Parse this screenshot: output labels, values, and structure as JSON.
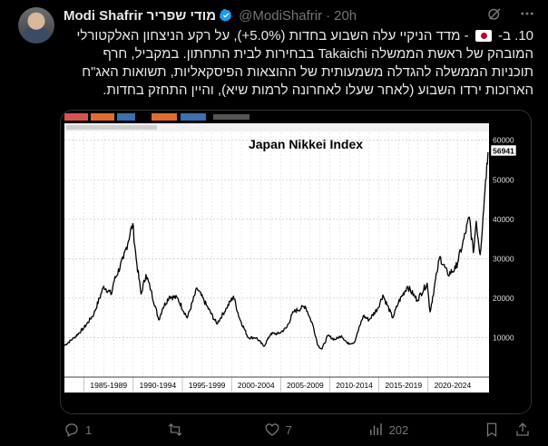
{
  "tweet": {
    "author_name": "Modi Shafrir מודי שפריר",
    "handle": "@ModiShafrir",
    "time": "20h",
    "text_lines": [
      "10. ב- 🇯🇵 - מדד הניקיי עלה השבוע בחדות (5.0%+), על רקע הניצחון האלקטורלי",
      "המובהק של ראשת הממשלה Takaichi בבחירות לבית התחתון. במקביל, חרף",
      "תוכניות הממשלה להגדלה משמעותית של ההוצאות הפיסקאליות, תשואות האג\"ח",
      "הארוכות ירדו השבוע (לאחר שעלו לאחרונה לרמות שיא), והיין התחזק בחדות."
    ],
    "text_pre_flag": "10. ב-",
    "text_post_flag": "- מדד הניקיי עלה השבוע בחדות (5.0%+), על רקע הניצחון האלקטורלי המובהק של ראשת הממשלה Takaichi בבחירות לבית התחתון. במקביל, חרף תוכניות הממשלה להגדלה משמעותית של ההוצאות הפיסקאליות, תשואות האג\"ח הארוכות ירדו השבוע (לאחר שעלו לאחרונה לרמות שיא), והיין התחזק בחדות."
  },
  "icons": {
    "verified": "verified-badge-icon",
    "grok": "grok-icon",
    "more": "more-icon",
    "reply": "reply-icon",
    "retweet": "retweet-icon",
    "like": "like-icon",
    "views": "views-icon",
    "bookmark": "bookmark-icon",
    "share": "share-icon"
  },
  "colors": {
    "accent": "#1d9bf0",
    "muted": "#71767b"
  },
  "actions": {
    "reply_count": "1",
    "retweet_count": "",
    "like_count": "7",
    "views_count": "202"
  },
  "chart_data": {
    "type": "line",
    "title": "Japan Nikkei Index",
    "x_tick_labels": [
      "1985-1989",
      "1990-1994",
      "1995-1999",
      "2000-2004",
      "2005-2009",
      "2010-2014",
      "2015-2019",
      "2020-2024"
    ],
    "y_tick_labels": [
      "60000",
      "50000",
      "40000",
      "30000",
      "20000",
      "10000"
    ],
    "ylim": [
      0,
      62000
    ],
    "xlim": [
      1983,
      2026.2
    ],
    "last_value_label": "56941",
    "grid": true,
    "series": [
      {
        "values": [
          [
            1983.0,
            8000
          ],
          [
            1984.0,
            10000
          ],
          [
            1985.0,
            12500
          ],
          [
            1986.0,
            16000
          ],
          [
            1987.0,
            23000
          ],
          [
            1987.8,
            21000
          ],
          [
            1988.0,
            24000
          ],
          [
            1989.0,
            30000
          ],
          [
            1989.95,
            38900
          ],
          [
            1990.3,
            30000
          ],
          [
            1990.8,
            21000
          ],
          [
            1991.3,
            26000
          ],
          [
            1991.8,
            22000
          ],
          [
            1992.6,
            14500
          ],
          [
            1993.0,
            17500
          ],
          [
            1993.7,
            20500
          ],
          [
            1994.5,
            20000
          ],
          [
            1995.5,
            15000
          ],
          [
            1996.5,
            22500
          ],
          [
            1997.5,
            18000
          ],
          [
            1998.5,
            13500
          ],
          [
            1999.5,
            17500
          ],
          [
            2000.2,
            20500
          ],
          [
            2000.8,
            15000
          ],
          [
            2001.7,
            10000
          ],
          [
            2002.5,
            10000
          ],
          [
            2003.3,
            7800
          ],
          [
            2004.0,
            11000
          ],
          [
            2004.8,
            11000
          ],
          [
            2005.6,
            12500
          ],
          [
            2006.3,
            16500
          ],
          [
            2007.5,
            18000
          ],
          [
            2008.3,
            13000
          ],
          [
            2008.8,
            8000
          ],
          [
            2009.2,
            7100
          ],
          [
            2009.8,
            10500
          ],
          [
            2010.5,
            9500
          ],
          [
            2011.2,
            10500
          ],
          [
            2011.8,
            8500
          ],
          [
            2012.5,
            8800
          ],
          [
            2013.4,
            15500
          ],
          [
            2014.0,
            14500
          ],
          [
            2014.9,
            17500
          ],
          [
            2015.4,
            20800
          ],
          [
            2016.4,
            15000
          ],
          [
            2017.0,
            19000
          ],
          [
            2017.9,
            23000
          ],
          [
            2018.9,
            19500
          ],
          [
            2019.9,
            23800
          ],
          [
            2020.2,
            16500
          ],
          [
            2020.9,
            26500
          ],
          [
            2021.2,
            30500
          ],
          [
            2022.0,
            26000
          ],
          [
            2022.8,
            27500
          ],
          [
            2023.5,
            33500
          ],
          [
            2024.2,
            40500
          ],
          [
            2024.6,
            31500
          ],
          [
            2024.9,
            39500
          ],
          [
            2025.3,
            31000
          ],
          [
            2025.6,
            41000
          ],
          [
            2025.85,
            50000
          ],
          [
            2026.1,
            56941
          ]
        ]
      }
    ]
  }
}
